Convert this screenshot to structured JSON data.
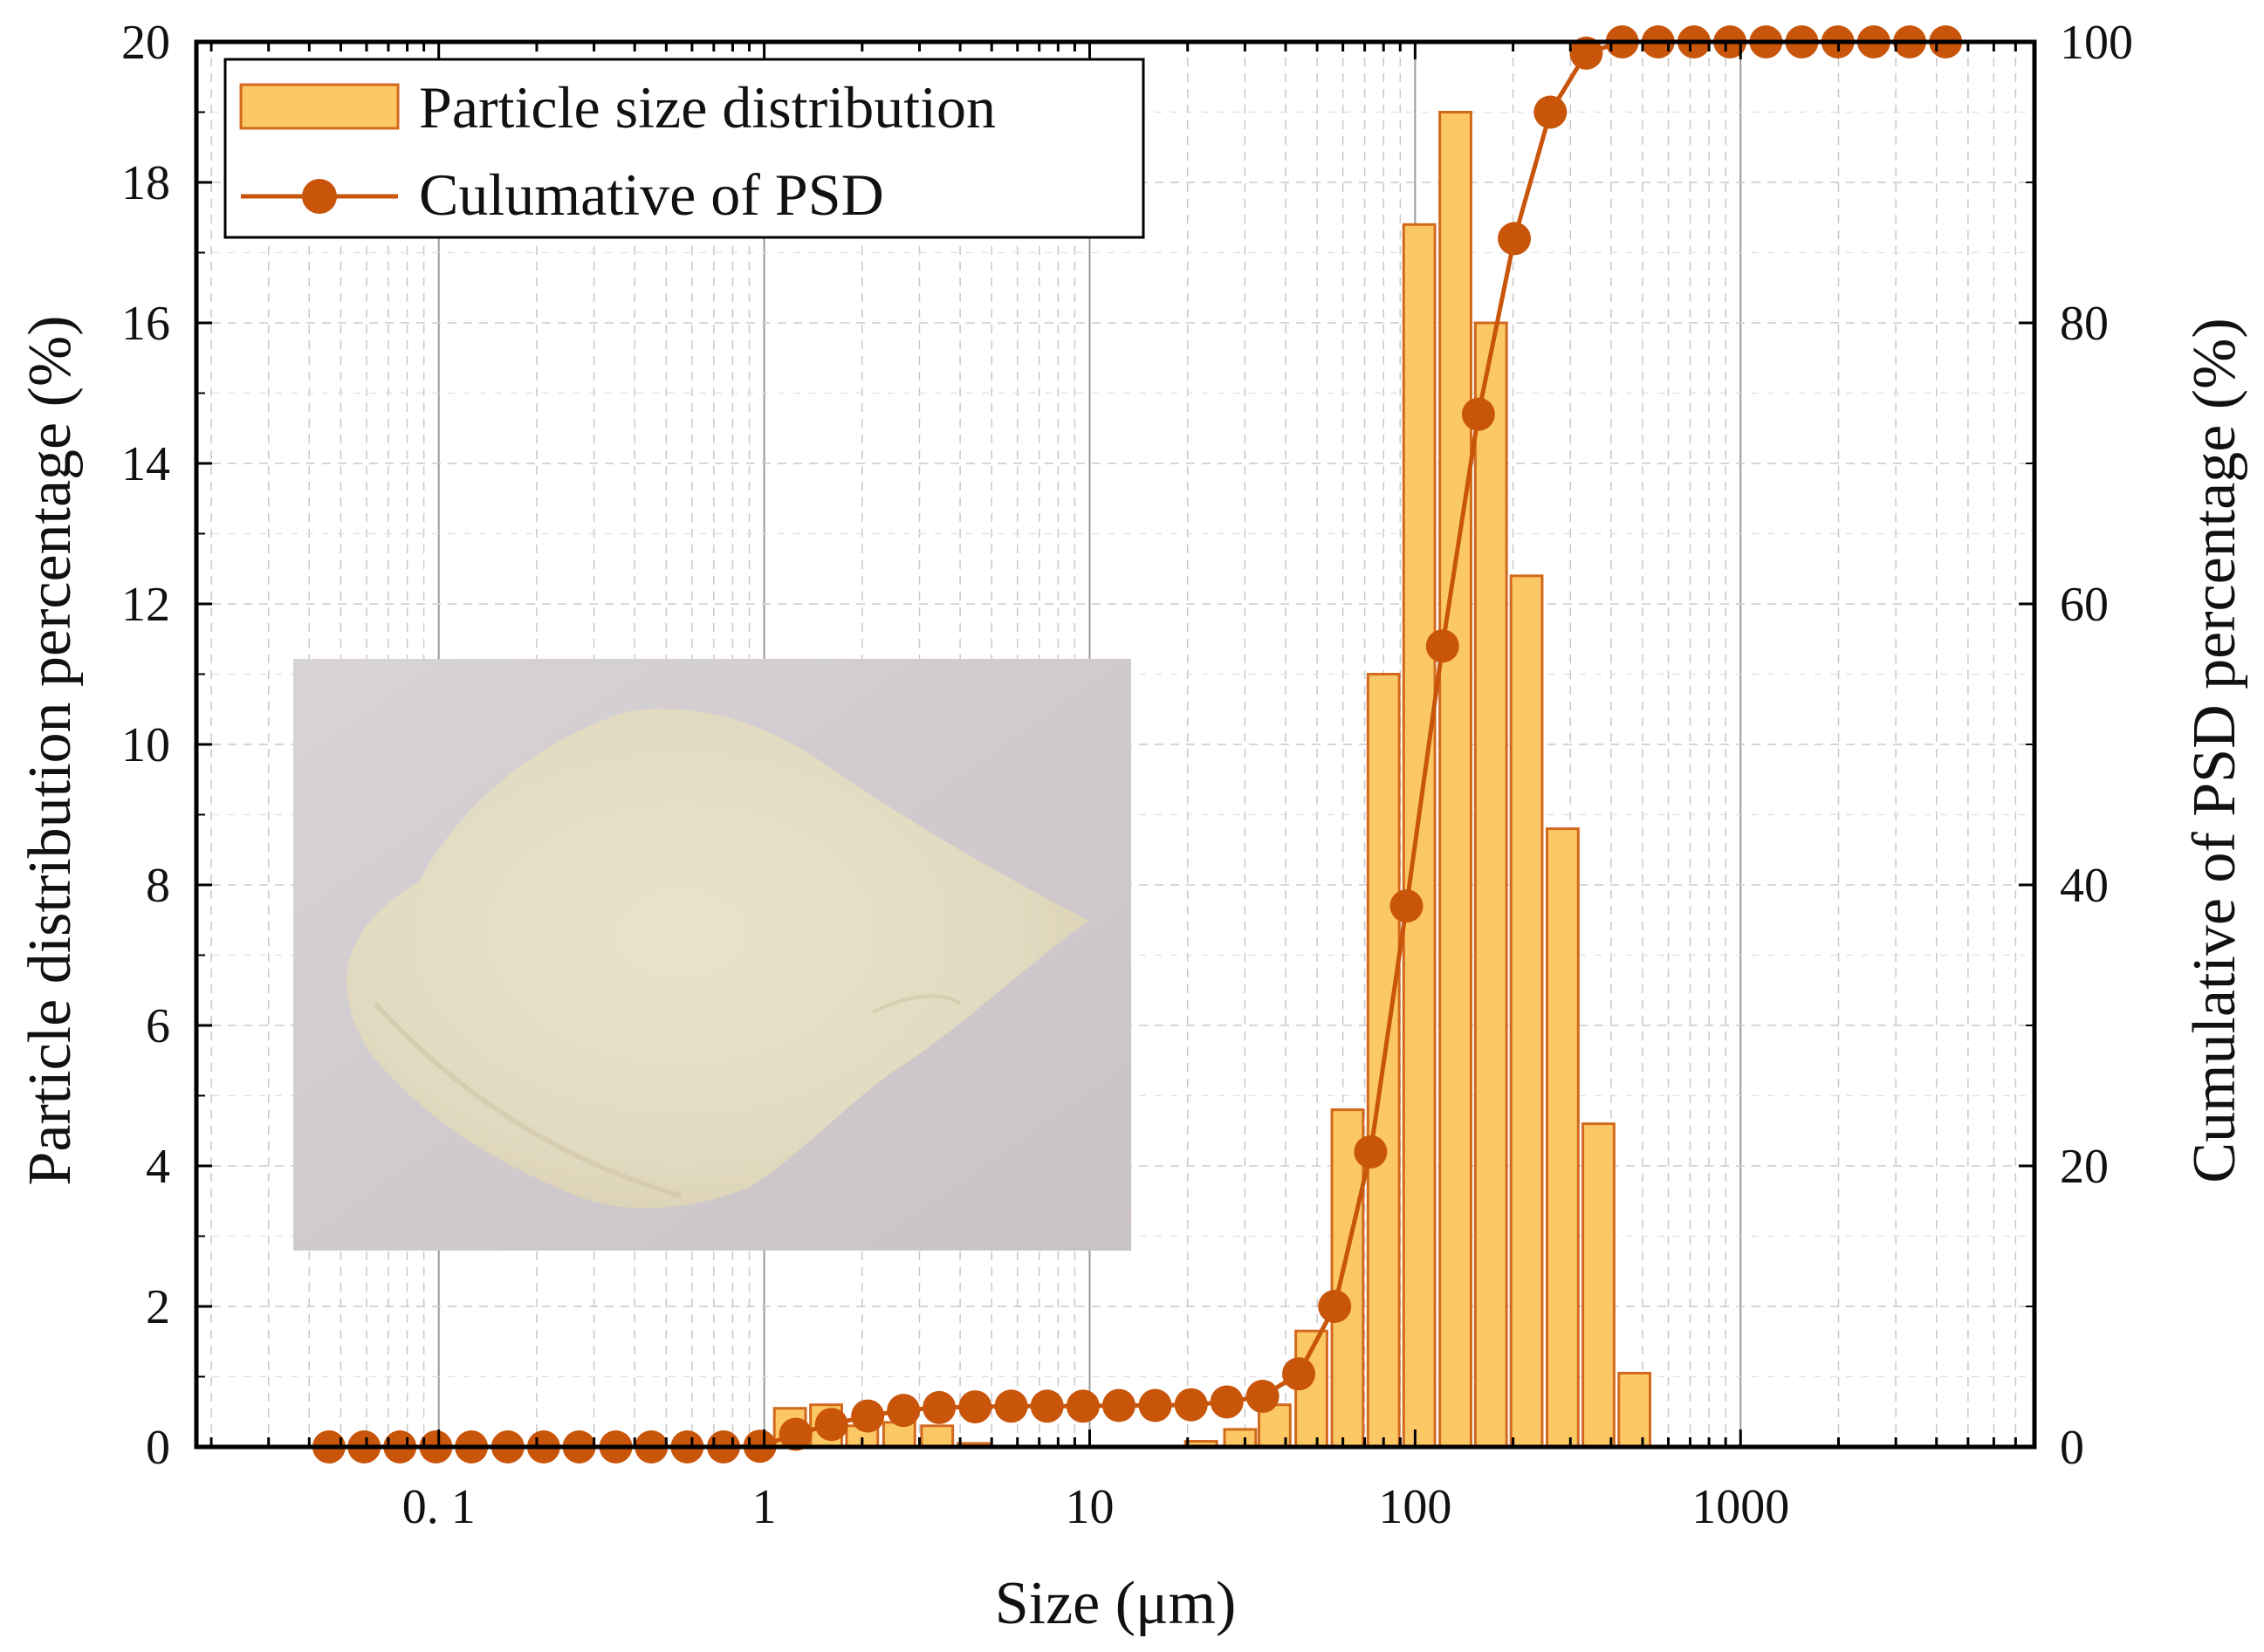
{
  "chart_data": {
    "type": "bar+line",
    "xscale": "log",
    "xlabel": "Size (μm)",
    "ylabel_left": "Particle distribution percentage (%)",
    "ylabel_right": "Cumulative of PSD percentage (%)",
    "xlim": [
      0.018,
      8000
    ],
    "ylim_left": [
      0,
      20
    ],
    "ylim_right": [
      0,
      100
    ],
    "x_ticks": [
      0.1,
      1,
      10,
      100,
      1000
    ],
    "x_tick_labels": [
      "0. 1",
      "1",
      "10",
      "100",
      "1000"
    ],
    "y_left_ticks": [
      0,
      2,
      4,
      6,
      8,
      10,
      12,
      14,
      16,
      18,
      20
    ],
    "y_left_tick_labels": [
      "0",
      "2",
      "4",
      "6",
      "8",
      "10",
      "12",
      "14",
      "16",
      "18",
      "20"
    ],
    "y_right_ticks": [
      0,
      20,
      40,
      60,
      80,
      100
    ],
    "y_right_tick_labels": [
      "0",
      "20",
      "40",
      "60",
      "80",
      "100"
    ],
    "grid": true,
    "legend_position": "top-left",
    "series": [
      {
        "name": "Particle size distribution",
        "type": "bar",
        "axis": "left",
        "color": "#FCC866",
        "edge_color": "#D2691E",
        "x": [
          1.2,
          1.55,
          2.0,
          2.6,
          3.4,
          4.4,
          22,
          29,
          37,
          48,
          62,
          80,
          103,
          133,
          171,
          220,
          284,
          366,
          472
        ],
        "values": [
          0.55,
          0.6,
          0.3,
          0.35,
          0.3,
          0.05,
          0.08,
          0.25,
          0.6,
          1.65,
          4.8,
          11.0,
          17.4,
          19.0,
          16.0,
          12.4,
          8.8,
          4.6,
          1.05
        ]
      },
      {
        "name": "Culumative of PSD",
        "type": "line",
        "axis": "right",
        "color": "#C8550A",
        "x": [
          0.046,
          0.059,
          0.076,
          0.098,
          0.126,
          0.163,
          0.21,
          0.27,
          0.35,
          0.45,
          0.58,
          0.75,
          0.97,
          1.25,
          1.61,
          2.08,
          2.68,
          3.45,
          4.45,
          5.74,
          7.4,
          9.54,
          12.3,
          15.9,
          20.5,
          26.4,
          34.0,
          43.9,
          56.6,
          73.0,
          94.1,
          121.4,
          156.5,
          201.8,
          260.3,
          335.6,
          432.8,
          558.1,
          719.7,
          928.1,
          1197,
          1543,
          1990,
          2566,
          3309,
          4267
        ],
        "values": [
          0,
          0,
          0,
          0,
          0,
          0,
          0,
          0,
          0,
          0,
          0,
          0,
          0.05,
          0.9,
          1.6,
          2.2,
          2.6,
          2.8,
          2.85,
          2.9,
          2.9,
          2.9,
          2.95,
          2.95,
          3.0,
          3.2,
          3.6,
          5.2,
          10.0,
          21.0,
          38.5,
          57.0,
          73.5,
          86.0,
          95.0,
          99.2,
          100,
          100,
          100,
          100,
          100,
          100,
          100,
          100,
          100,
          100
        ]
      }
    ]
  },
  "inset": {
    "name": "sand-sample-photo"
  }
}
